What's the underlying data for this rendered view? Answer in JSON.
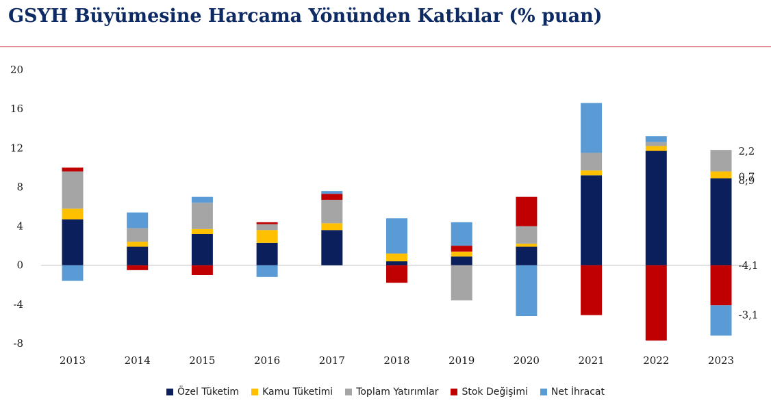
{
  "title": "GSYH Büyümesine Harcama Yönünden Katkılar (% puan)",
  "colors": {
    "title": "#0d2a63",
    "rule": "#c8102e",
    "ozel": "#0b1f5c",
    "kamu": "#ffc000",
    "yatirim": "#a5a5a5",
    "stok": "#c00000",
    "ihracat": "#5b9bd5"
  },
  "chart_data": {
    "type": "bar",
    "stacked": true,
    "title": "GSYH Büyümesine Harcama Yönünden Katkılar (% puan)",
    "categories": [
      "2013",
      "2014",
      "2015",
      "2016",
      "2017",
      "2018",
      "2019",
      "2020",
      "2021",
      "2022",
      "2023"
    ],
    "ylim": [
      -8,
      20
    ],
    "yticks": [
      "20",
      "16",
      "12",
      "8",
      "4",
      "0",
      "-4",
      "-8"
    ],
    "ytick_values": [
      20,
      16,
      12,
      8,
      4,
      0,
      -4,
      -8
    ],
    "grid": false,
    "legend_position": "bottom",
    "series": [
      {
        "name": "Özel Tüketim",
        "color_key": "ozel",
        "values": [
          4.7,
          1.9,
          3.2,
          2.3,
          3.6,
          0.4,
          0.9,
          1.9,
          9.2,
          11.7,
          8.9
        ]
      },
      {
        "name": "Kamu Tüketimi",
        "color_key": "kamu",
        "values": [
          1.1,
          0.5,
          0.5,
          1.3,
          0.7,
          0.8,
          0.5,
          0.3,
          0.5,
          0.5,
          0.7
        ]
      },
      {
        "name": "Toplam Yatırımlar",
        "color_key": "yatirim",
        "values": [
          3.8,
          1.4,
          2.7,
          0.6,
          2.4,
          0.0,
          -3.6,
          1.8,
          1.8,
          0.4,
          2.2
        ]
      },
      {
        "name": "Stok Değişimi",
        "color_key": "stok",
        "values": [
          0.4,
          -0.5,
          -1.0,
          0.2,
          0.6,
          -1.8,
          0.6,
          3.0,
          -5.1,
          -7.7,
          -4.1
        ]
      },
      {
        "name": "Net İhracat",
        "color_key": "ihracat",
        "values": [
          -1.6,
          1.6,
          0.6,
          -1.2,
          0.3,
          3.6,
          2.4,
          -5.2,
          5.1,
          0.6,
          -3.1
        ]
      }
    ],
    "annotations": [
      {
        "text": "2,2",
        "series": "Toplam Yatırımlar",
        "category": "2023"
      },
      {
        "text": "0,7",
        "series": "Kamu Tüketimi",
        "category": "2023"
      },
      {
        "text": "8,9",
        "series": "Özel Tüketim",
        "category": "2023"
      },
      {
        "text": "-4,1",
        "series": "Stok Değişimi",
        "category": "2023"
      },
      {
        "text": "-3,1",
        "series": "Net İhracat",
        "category": "2023"
      }
    ]
  }
}
